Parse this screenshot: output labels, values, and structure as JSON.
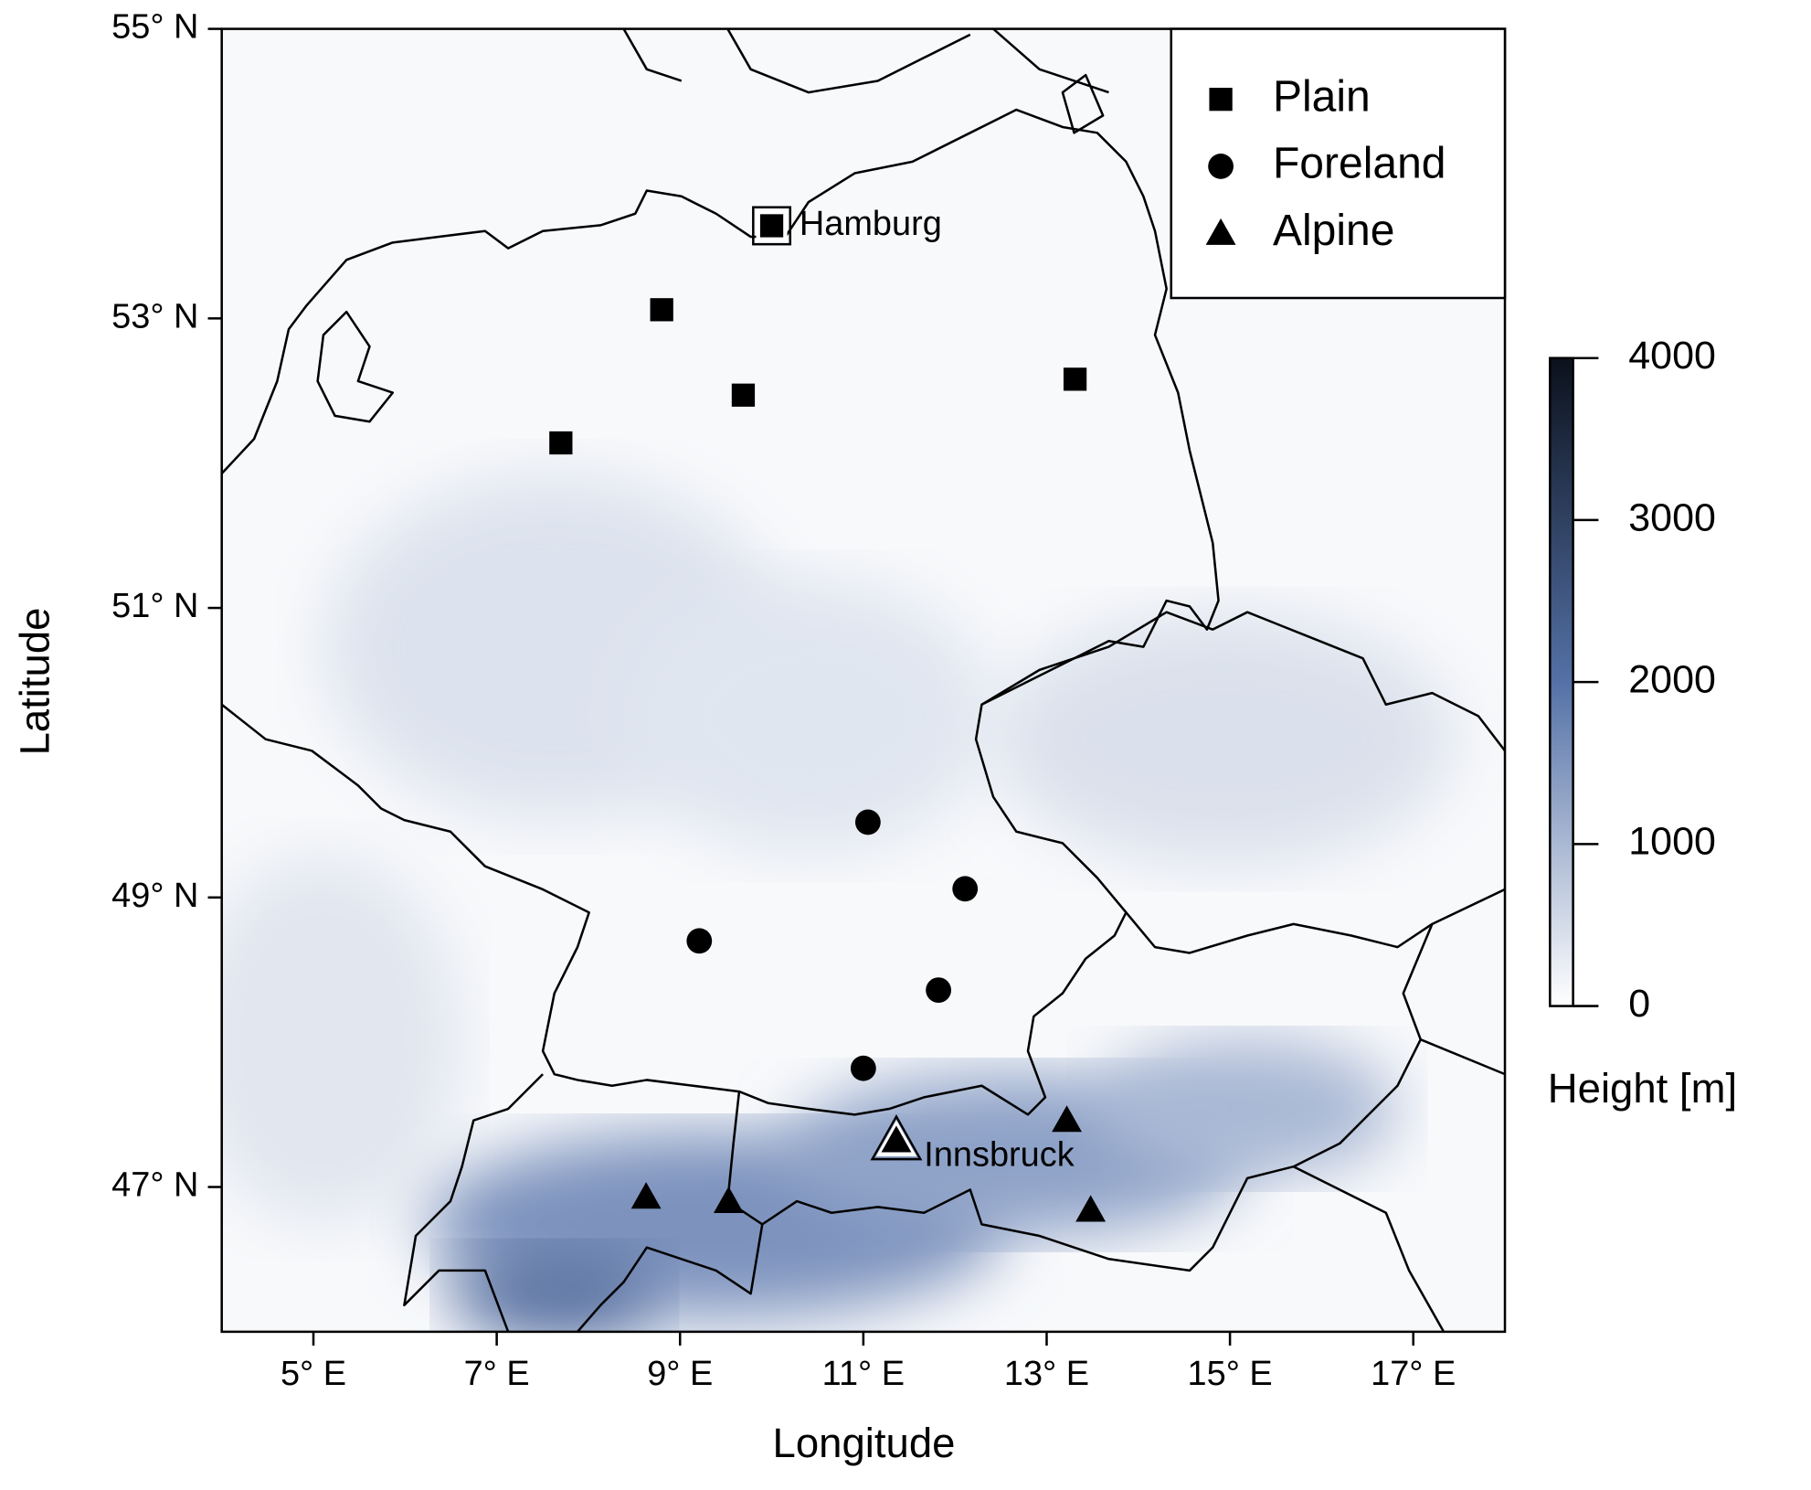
{
  "chart_data": {
    "type": "scatter",
    "xlabel": "Longitude",
    "ylabel": "Latitude",
    "xlim": [
      4,
      18
    ],
    "ylim": [
      46,
      55
    ],
    "xticks": [
      {
        "value": 5,
        "label": "5° E"
      },
      {
        "value": 7,
        "label": "7° E"
      },
      {
        "value": 9,
        "label": "9° E"
      },
      {
        "value": 11,
        "label": "11° E"
      },
      {
        "value": 13,
        "label": "13° E"
      },
      {
        "value": 15,
        "label": "15° E"
      },
      {
        "value": 17,
        "label": "17° E"
      }
    ],
    "yticks": [
      {
        "value": 47,
        "label": "47° N"
      },
      {
        "value": 49,
        "label": "49° N"
      },
      {
        "value": 51,
        "label": "51° N"
      },
      {
        "value": 53,
        "label": "53° N"
      },
      {
        "value": 55,
        "label": "55° N"
      }
    ],
    "legend": "top-right",
    "series": [
      {
        "name": "Plain",
        "marker": "square",
        "color": "#000000",
        "x": [
          8.8,
          9.69,
          7.7,
          13.31,
          10.0
        ],
        "y": [
          53.06,
          52.47,
          52.14,
          52.58,
          53.64
        ]
      },
      {
        "name": "Foreland",
        "marker": "circle",
        "color": "#000000",
        "x": [
          11.05,
          12.11,
          9.21,
          11.82,
          11.0
        ],
        "y": [
          49.52,
          49.06,
          48.7,
          48.36,
          47.82
        ]
      },
      {
        "name": "Alpine",
        "marker": "triangle",
        "color": "#000000",
        "x": [
          13.22,
          8.63,
          9.53,
          13.48,
          11.36
        ],
        "y": [
          47.46,
          46.93,
          46.9,
          46.84,
          47.32
        ]
      }
    ],
    "annotations": [
      {
        "text": "Hamburg",
        "x": 10.0,
        "y": 53.64
      },
      {
        "text": "Innsbruck",
        "x": 11.36,
        "y": 47.32
      }
    ],
    "colorbar": {
      "title": "Height [m]",
      "lim": [
        0,
        4000
      ],
      "ticks": [
        0,
        1000,
        2000,
        3000,
        4000
      ],
      "colors": [
        "#ffffff",
        "#5471a6",
        "#0b111c"
      ]
    }
  }
}
